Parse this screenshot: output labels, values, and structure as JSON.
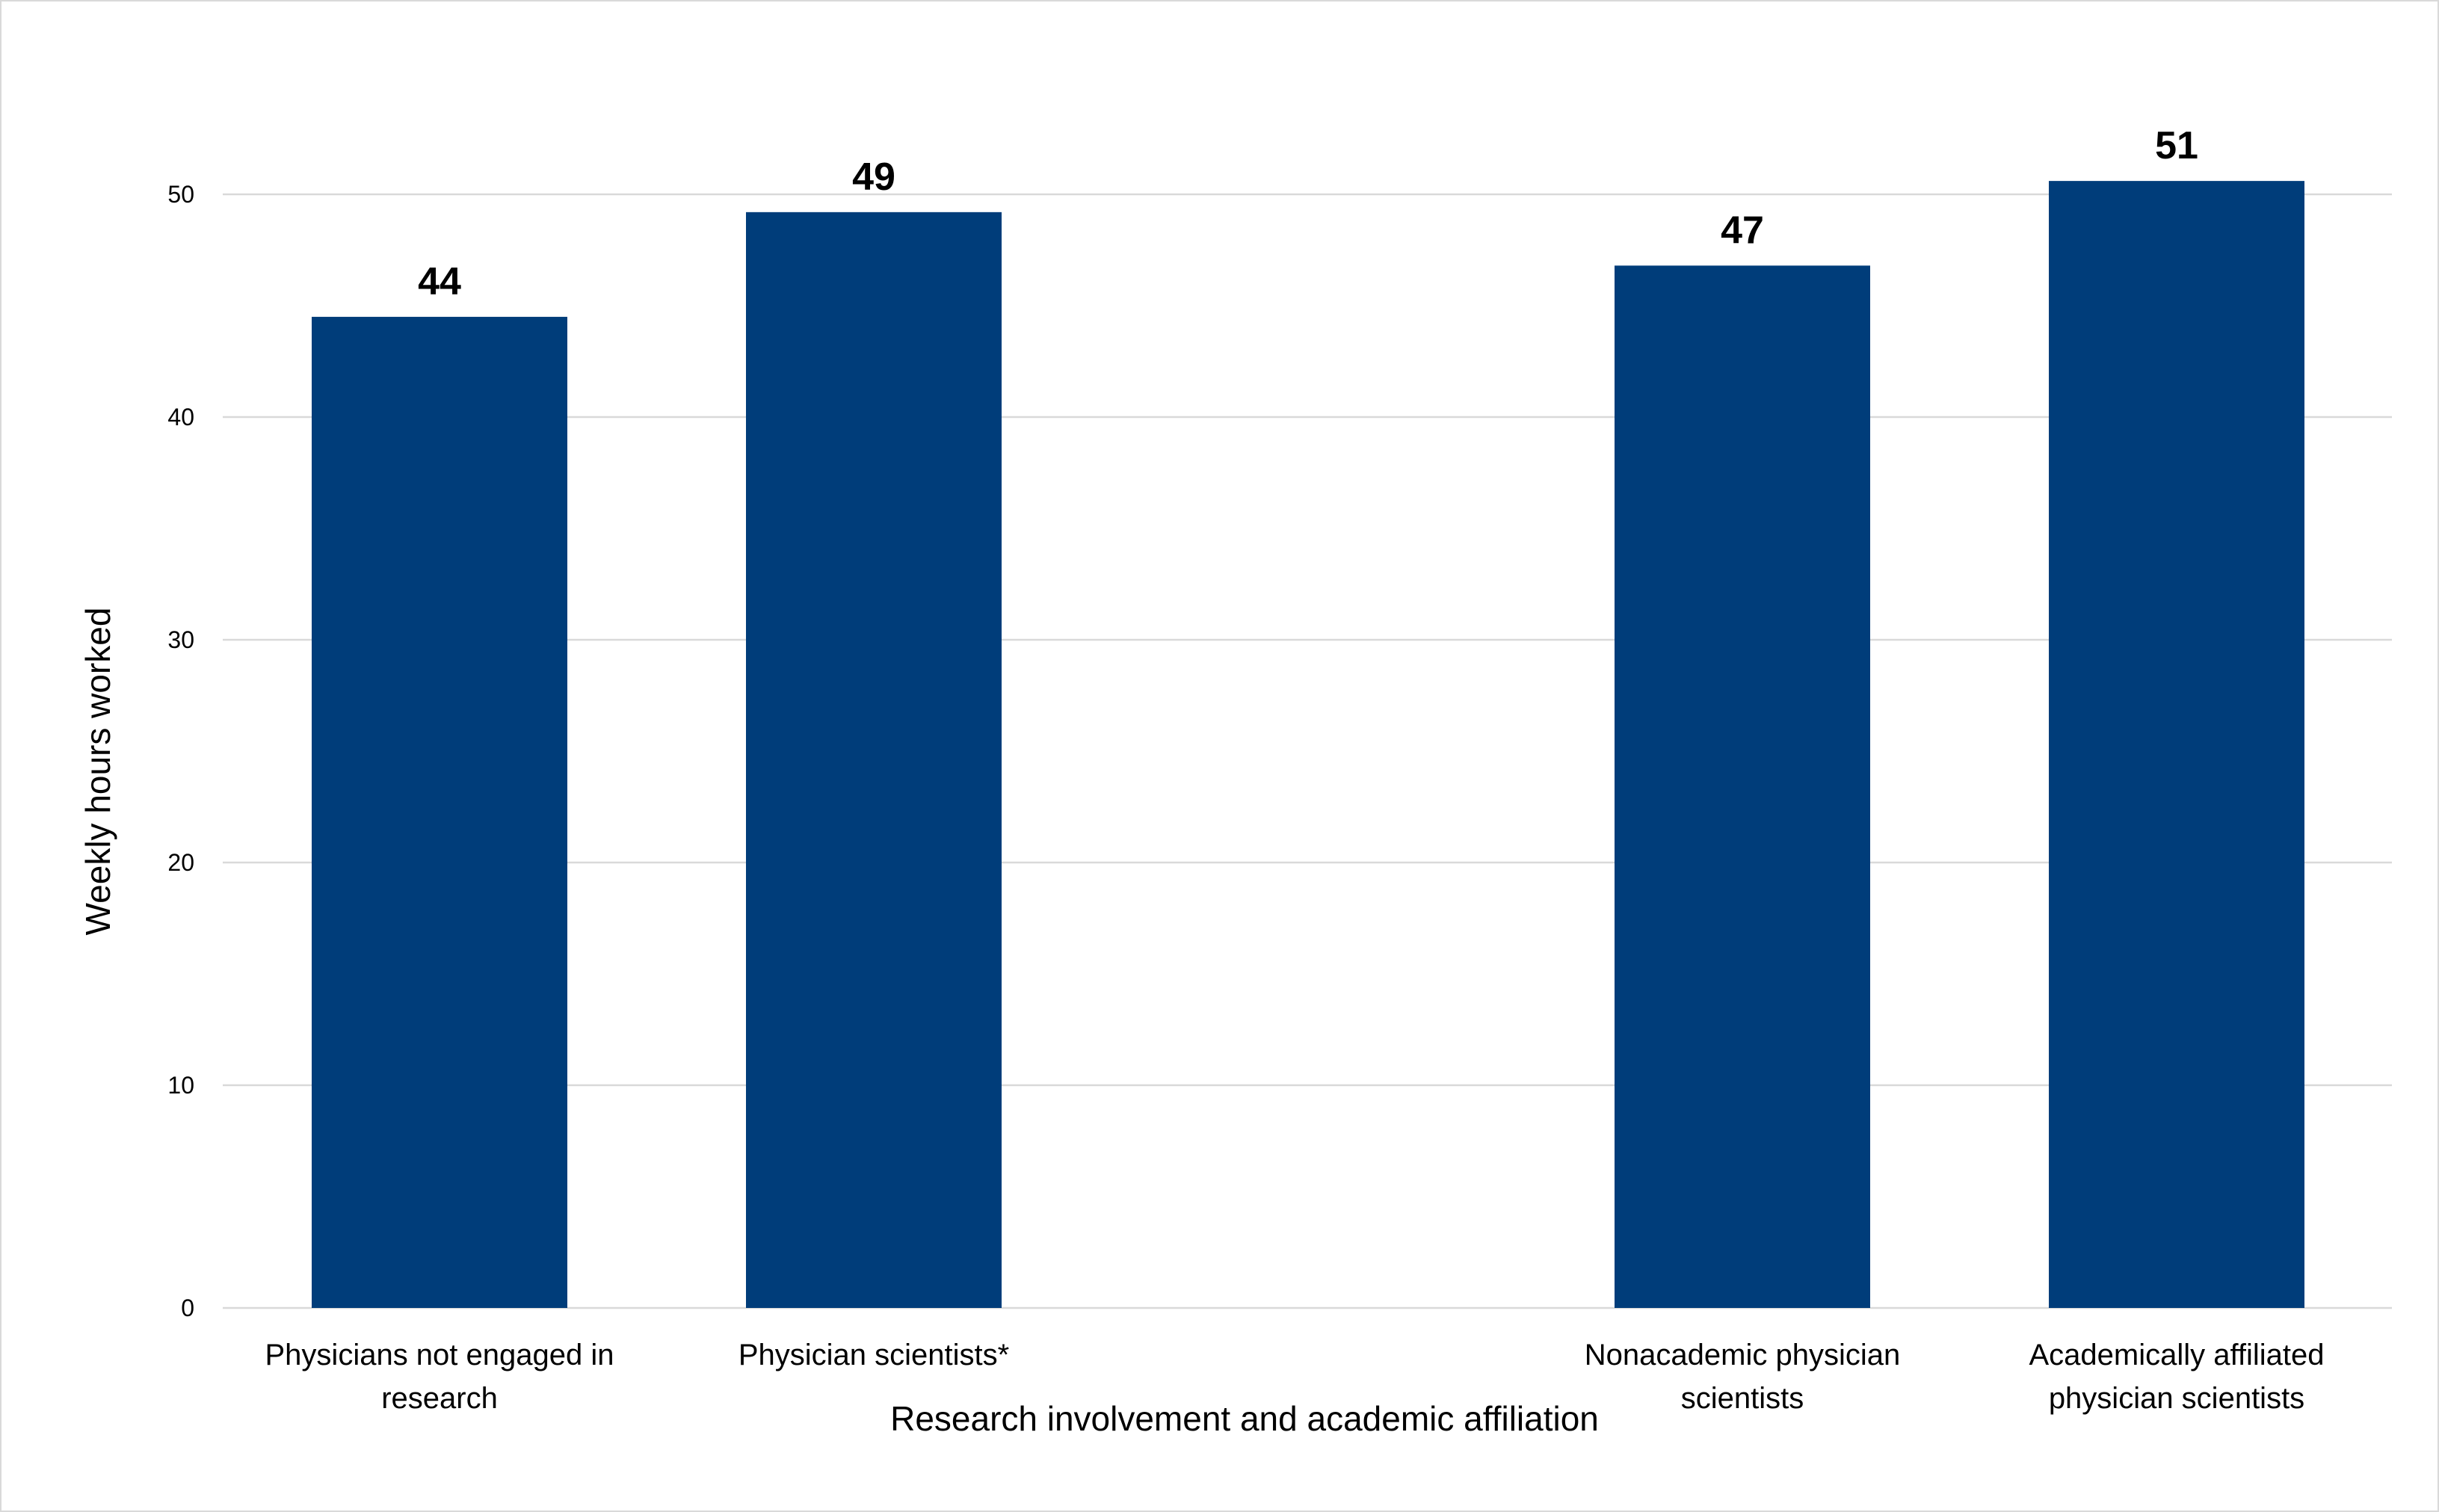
{
  "chart_data": {
    "type": "bar",
    "categories": [
      [
        "Physicians not engaged in",
        "research"
      ],
      [
        "Physician scientists*"
      ],
      [
        "Nonacademic physician",
        "scientists"
      ],
      [
        "Academically affiliated",
        "physician scientists"
      ]
    ],
    "values": [
      44.5,
      49.2,
      46.8,
      50.6
    ],
    "data_labels": [
      "44",
      "49",
      "47",
      "51"
    ],
    "xlabel": "Research involvement and academic affiliation",
    "ylabel": "Weekly hours worked",
    "ylim": [
      0,
      50
    ],
    "yticks": [
      0,
      10,
      20,
      30,
      40,
      50
    ],
    "grid": true,
    "bar_color": "#003d7a",
    "grid_color": "#d9d9d9"
  }
}
